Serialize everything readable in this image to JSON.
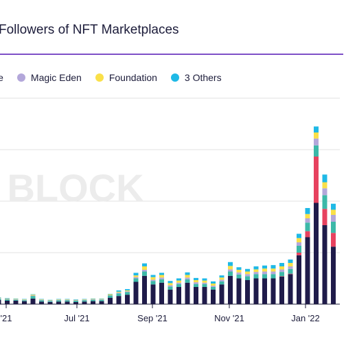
{
  "header": {
    "title": "Followers of NFT Marketplaces"
  },
  "watermark": "BLOCK",
  "legend": [
    {
      "label": "le",
      "color": "#1f1b4a"
    },
    {
      "label": "Magic Eden",
      "color": "#b3a7da"
    },
    {
      "label": "Foundation",
      "color": "#fae049"
    },
    {
      "label": "3 Others",
      "color": "#1fb9e6"
    }
  ],
  "chart_data": {
    "type": "bar",
    "stacked": true,
    "grid": "horizontal",
    "x_tick_labels": [
      "'21",
      "Jul '21",
      "Sep '21",
      "Nov '21",
      "Jan '22"
    ],
    "series_colors": {
      "base": "#1f1b4a",
      "pink": "#e7425f",
      "teal": "#3cb8a8",
      "lavender": "#b3a7da",
      "yellow": "#fae049",
      "cyan": "#1fb9e6"
    },
    "bars": [
      {
        "base": 5.0,
        "teal": 1.5,
        "lavender": 0.5,
        "yellow": 0.5,
        "cyan": 0.5
      },
      {
        "base": 4.0,
        "teal": 1.5,
        "lavender": 0.5,
        "yellow": 0.5,
        "cyan": 0.5
      },
      {
        "base": 4.0,
        "teal": 1.0,
        "lavender": 0.5,
        "yellow": 0.5,
        "cyan": 0.5
      },
      {
        "base": 3.5,
        "teal": 1.0,
        "lavender": 0.5,
        "yellow": 0.5,
        "cyan": 0.5
      },
      {
        "base": 6.5,
        "teal": 3.0,
        "lavender": 0.5,
        "yellow": 1.0,
        "cyan": 0.5
      },
      {
        "base": 3.0,
        "teal": 1.5,
        "lavender": 0.5,
        "yellow": 0.5,
        "cyan": 0.5
      },
      {
        "base": 2.5,
        "teal": 1.0,
        "lavender": 0.5,
        "yellow": 0.5,
        "cyan": 0.5
      },
      {
        "base": 3.0,
        "teal": 1.5,
        "lavender": 0.5,
        "yellow": 0.5,
        "cyan": 0.5
      },
      {
        "base": 3.0,
        "teal": 1.5,
        "lavender": 0.5,
        "yellow": 0.5,
        "cyan": 0.5
      },
      {
        "base": 2.5,
        "teal": 1.5,
        "lavender": 0.5,
        "yellow": 0.5,
        "cyan": 0.5
      },
      {
        "base": 3.0,
        "teal": 1.5,
        "lavender": 0.5,
        "yellow": 0.5,
        "cyan": 0.5
      },
      {
        "base": 3.5,
        "teal": 1.5,
        "lavender": 0.5,
        "yellow": 0.5,
        "cyan": 0.5
      },
      {
        "base": 3.5,
        "teal": 1.5,
        "lavender": 0.5,
        "yellow": 0.5,
        "cyan": 0.5
      },
      {
        "base": 7.5,
        "teal": 2.5,
        "lavender": 0.5,
        "yellow": 1.0,
        "cyan": 0.5
      },
      {
        "base": 9.5,
        "teal": 3.0,
        "lavender": 1.0,
        "yellow": 1.0,
        "cyan": 1.5
      },
      {
        "base": 11.0,
        "teal": 3.0,
        "lavender": 1.0,
        "yellow": 1.0,
        "cyan": 1.5
      },
      {
        "base": 26.0,
        "teal": 4.0,
        "lavender": 1.5,
        "yellow": 2.0,
        "cyan": 3.0
      },
      {
        "base": 33.0,
        "teal": 5.0,
        "lavender": 2.0,
        "yellow": 4.0,
        "cyan": 3.5
      },
      {
        "base": 23.0,
        "teal": 4.0,
        "lavender": 1.5,
        "yellow": 3.0,
        "cyan": 2.5
      },
      {
        "base": 25.0,
        "teal": 4.0,
        "lavender": 2.0,
        "yellow": 3.0,
        "cyan": 2.5
      },
      {
        "base": 17.0,
        "teal": 3.5,
        "lavender": 1.5,
        "yellow": 2.5,
        "cyan": 2.5
      },
      {
        "base": 20.0,
        "teal": 3.5,
        "lavender": 1.5,
        "yellow": 2.5,
        "cyan": 2.5
      },
      {
        "base": 25.0,
        "teal": 4.0,
        "lavender": 2.0,
        "yellow": 3.0,
        "cyan": 3.0
      },
      {
        "base": 20.0,
        "teal": 3.5,
        "lavender": 2.0,
        "yellow": 2.5,
        "cyan": 2.5
      },
      {
        "base": 20.0,
        "teal": 3.5,
        "lavender": 1.5,
        "yellow": 2.5,
        "cyan": 2.5
      },
      {
        "base": 17.0,
        "teal": 3.0,
        "lavender": 1.5,
        "yellow": 2.5,
        "cyan": 2.5
      },
      {
        "base": 23.0,
        "teal": 3.5,
        "lavender": 2.0,
        "yellow": 2.5,
        "cyan": 2.5
      },
      {
        "base": 33.0,
        "teal": 5.0,
        "lavender": 2.5,
        "yellow": 4.0,
        "cyan": 4.5
      },
      {
        "base": 30.0,
        "teal": 4.5,
        "lavender": 2.5,
        "yellow": 3.0,
        "cyan": 3.0
      },
      {
        "base": 28.0,
        "teal": 4.5,
        "lavender": 2.5,
        "yellow": 3.0,
        "cyan": 3.0
      },
      {
        "base": 30.0,
        "teal": 5.0,
        "lavender": 2.5,
        "yellow": 3.0,
        "cyan": 3.5
      },
      {
        "base": 30.0,
        "teal": 5.0,
        "lavender": 3.0,
        "yellow": 3.5,
        "cyan": 3.5
      },
      {
        "base": 30.0,
        "teal": 5.0,
        "lavender": 3.0,
        "yellow": 3.5,
        "cyan": 4.0
      },
      {
        "base": 32.0,
        "pink": 0.5,
        "teal": 5.0,
        "lavender": 3.0,
        "yellow": 3.5,
        "cyan": 4.0
      },
      {
        "base": 35.0,
        "pink": 0.5,
        "teal": 5.5,
        "lavender": 3.0,
        "yellow": 4.0,
        "cyan": 4.0
      },
      {
        "base": 57.0,
        "pink": 3.0,
        "teal": 8.0,
        "lavender": 4.0,
        "yellow": 5.0,
        "cyan": 5.0
      },
      {
        "base": 78.0,
        "pink": 7.0,
        "teal": 10.0,
        "lavender": 5.0,
        "yellow": 5.0,
        "cyan": 7.0
      },
      {
        "base": 118.0,
        "pink": 54.0,
        "teal": 13.0,
        "lavender": 8.0,
        "yellow": 7.0,
        "cyan": 7.0
      },
      {
        "base": 92.0,
        "pink": 19.0,
        "teal": 16.0,
        "lavender": 8.0,
        "yellow": 7.0,
        "cyan": 9.0
      },
      {
        "base": 67.0,
        "pink": 16.0,
        "teal": 13.0,
        "lavender": 8.0,
        "yellow": 6.0,
        "cyan": 7.0
      }
    ]
  }
}
